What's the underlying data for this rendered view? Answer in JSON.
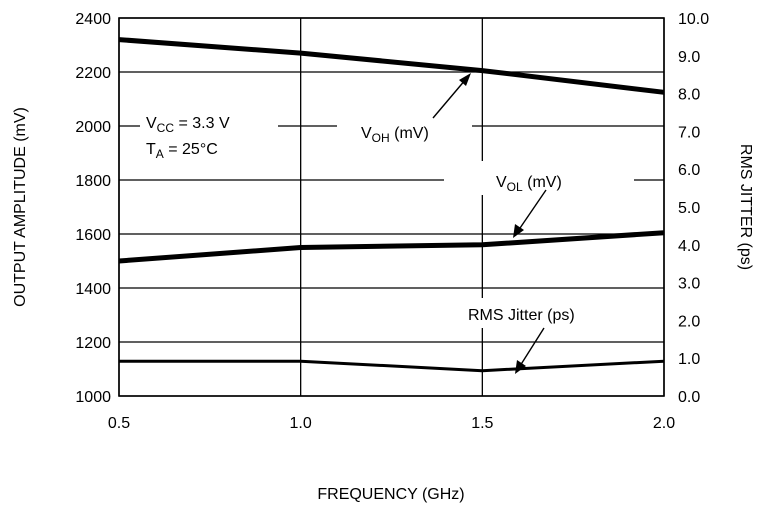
{
  "chart_data": {
    "type": "line",
    "xlabel": "FREQUENCY (GHz)",
    "ylabel": "OUTPUT AMPLITUDE (mV)",
    "y2label": "RMS JITTER (ps)",
    "x_ticks": [
      "0.5",
      "1.0",
      "1.5",
      "2.0"
    ],
    "y_ticks": [
      "1000",
      "1200",
      "1400",
      "1600",
      "1800",
      "2000",
      "2200",
      "2400"
    ],
    "y2_ticks": [
      "0.0",
      "1.0",
      "2.0",
      "3.0",
      "4.0",
      "5.0",
      "6.0",
      "7.0",
      "8.0",
      "9.0",
      "10.0"
    ],
    "xlim": [
      0.5,
      2.0
    ],
    "ylim": [
      1000,
      2400
    ],
    "y2lim": [
      0,
      10
    ],
    "grid": true,
    "x": [
      0.5,
      1.0,
      1.5,
      2.0
    ],
    "series": [
      {
        "name": "VOH (mV)",
        "axis": "left",
        "values": [
          2320,
          2270,
          2205,
          2125
        ]
      },
      {
        "name": "VOL (mV)",
        "axis": "left",
        "values": [
          1500,
          1550,
          1560,
          1605
        ]
      },
      {
        "name": "RMS Jitter (ps)",
        "axis": "right",
        "values": [
          0.92,
          0.92,
          0.67,
          0.92
        ]
      }
    ],
    "annotations": {
      "conditions": {
        "vcc_main": "V",
        "vcc_sub": "CC",
        "vcc_rest": " = 3.3 V",
        "ta_main": "T",
        "ta_sub": "A",
        "ta_rest": " = 25°C"
      },
      "voh": {
        "main": "V",
        "sub": "OH",
        "rest": " (mV)"
      },
      "vol": {
        "main": "V",
        "sub": "OL",
        "rest": " (mV)"
      },
      "jitter": "RMS Jitter (ps)"
    }
  }
}
